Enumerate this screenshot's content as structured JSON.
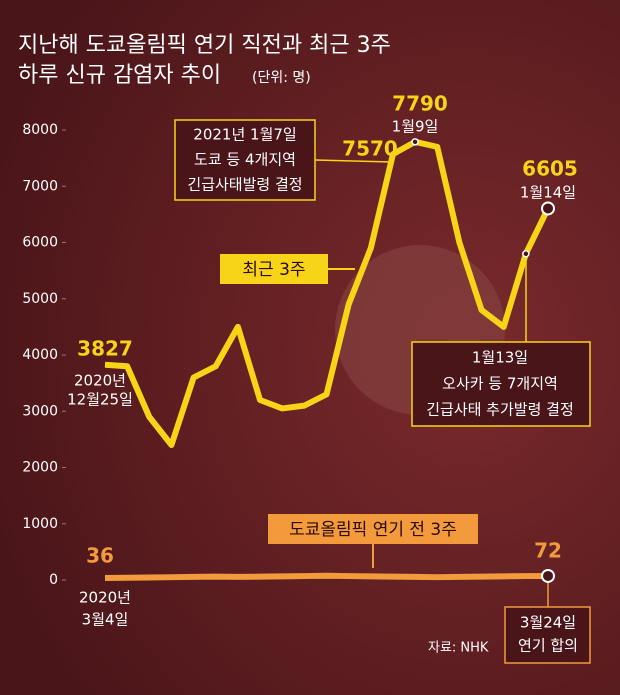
{
  "chart_data": {
    "type": "line",
    "title": "지난해 도쿄올림픽 연기 직전과 최근 3주",
    "subtitle": "하루 신규 감염자 추이",
    "unit": "(단위: 명)",
    "source": "자료: NHK",
    "categories": [
      null,
      null,
      null,
      null,
      null,
      null,
      null,
      null,
      null,
      null,
      null,
      null,
      null,
      null,
      null,
      null,
      null,
      null,
      null,
      null,
      null
    ],
    "series": [
      {
        "name": "최근 3주",
        "color": "#f7d417",
        "values": [
          3827,
          3800,
          2900,
          2400,
          3600,
          3800,
          4500,
          3200,
          3050,
          3100,
          3300,
          4900,
          5900,
          7570,
          7790,
          7700,
          6000,
          4800,
          4500,
          5800,
          6605
        ]
      },
      {
        "name": "도쿄올림픽 연기 전 3주",
        "color": "#f39a3c",
        "values": [
          36,
          40,
          45,
          50,
          55,
          60,
          55,
          60,
          65,
          70,
          75,
          70,
          65,
          60,
          55,
          50,
          55,
          60,
          65,
          70,
          72
        ]
      }
    ],
    "annotations": [
      "2021년 1월7일",
      "도쿄 등 4개지역",
      "긴급사태발령 결정",
      "1월9일",
      "1월14일",
      "2020년",
      "12월25일",
      "1월13일",
      "오사카 등 7개지역",
      "긴급사태 추가발령 결정",
      "2020년",
      "3월4일",
      "3월24일",
      "연기 합의"
    ],
    "ylim": [
      0,
      8000
    ],
    "yticks": [
      0,
      1000,
      2000,
      3000,
      4000,
      5000,
      6000,
      7000,
      8000
    ],
    "grid": false
  }
}
